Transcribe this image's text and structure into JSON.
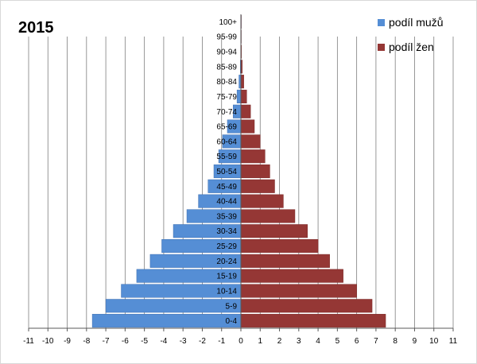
{
  "chart_data": {
    "type": "bar",
    "orientation": "horizontal",
    "layout": "population-pyramid",
    "title": "2015",
    "categories": [
      "0-4",
      "5-9",
      "10-14",
      "15-19",
      "20-24",
      "25-29",
      "30-34",
      "35-39",
      "40-44",
      "45-49",
      "50-54",
      "55-59",
      "60-64",
      "65-69",
      "70-74",
      "75-79",
      "80-84",
      "85-89",
      "90-94",
      "95-99",
      "100+"
    ],
    "series": [
      {
        "name": "podíl mužů",
        "color": "#558ed5",
        "values": [
          -7.7,
          -7.0,
          -6.2,
          -5.4,
          -4.7,
          -4.1,
          -3.5,
          -2.8,
          -2.2,
          -1.7,
          -1.4,
          -1.15,
          -0.95,
          -0.7,
          -0.4,
          -0.2,
          -0.1,
          -0.03,
          -0.01,
          -0.005,
          -0.001
        ]
      },
      {
        "name": "podíl žen",
        "color": "#953735",
        "values": [
          7.5,
          6.8,
          6.0,
          5.3,
          4.6,
          4.0,
          3.45,
          2.8,
          2.2,
          1.75,
          1.5,
          1.25,
          1.0,
          0.7,
          0.5,
          0.3,
          0.15,
          0.07,
          0.03,
          0.01,
          0.005
        ]
      }
    ],
    "xlim": [
      -11,
      11
    ],
    "xticks": [
      "-11",
      "-10",
      "-9",
      "-8",
      "-7",
      "-6",
      "-5",
      "-4",
      "-3",
      "-2",
      "-1",
      "0",
      "1",
      "2",
      "3",
      "4",
      "5",
      "6",
      "7",
      "8",
      "9",
      "10",
      "11"
    ],
    "grid": "vertical",
    "legend_position": "top-right"
  }
}
